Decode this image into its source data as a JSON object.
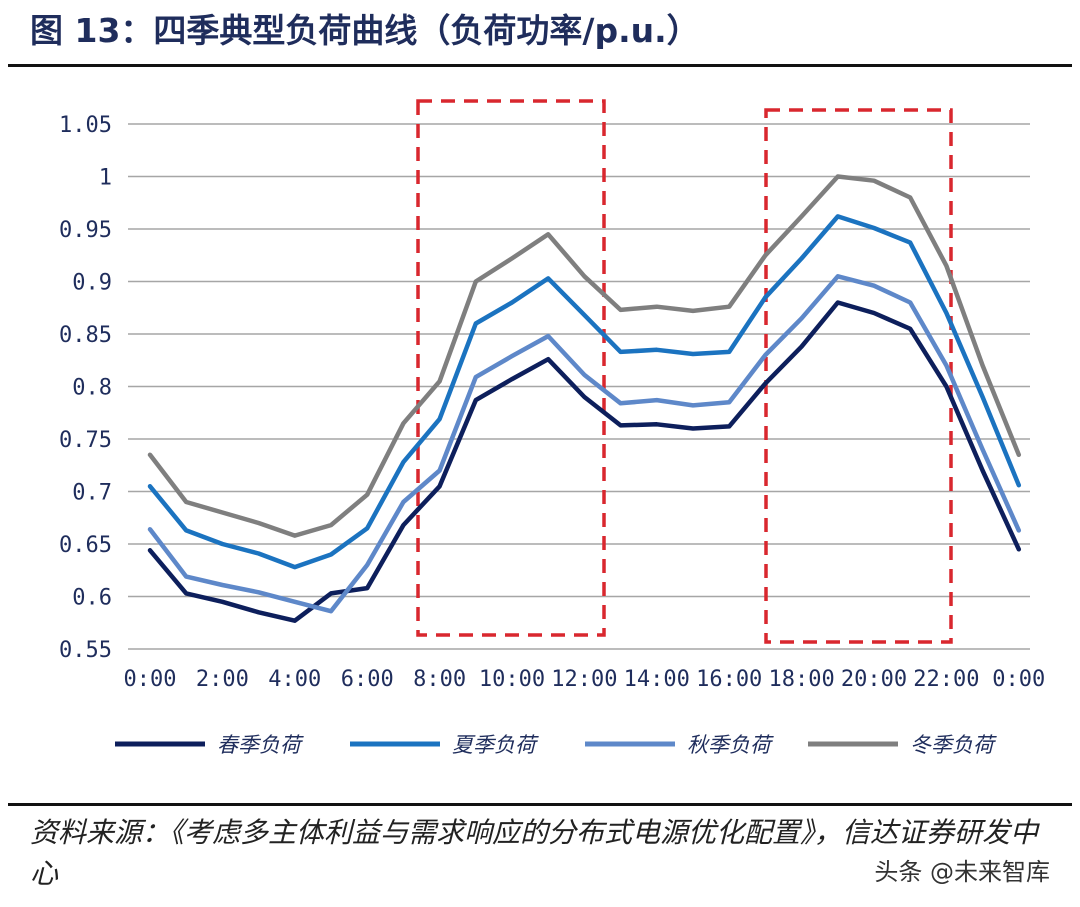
{
  "figure": {
    "title": "图 13：四季典型负荷曲线（负荷功率/p.u.）",
    "source": "资料来源：《考虑多主体利益与需求响应的分布式电源优化配置》，信达证券研发中心",
    "watermark": "头条 @未来智库"
  },
  "chart_data": {
    "type": "line",
    "x": [
      "0:00",
      "1:00",
      "2:00",
      "3:00",
      "4:00",
      "5:00",
      "6:00",
      "7:00",
      "8:00",
      "9:00",
      "10:00",
      "11:00",
      "12:00",
      "13:00",
      "14:00",
      "15:00",
      "16:00",
      "17:00",
      "18:00",
      "19:00",
      "20:00",
      "21:00",
      "22:00",
      "23:00",
      "0:00"
    ],
    "x_tick_labels": [
      "0:00",
      "2:00",
      "4:00",
      "6:00",
      "8:00",
      "10:00",
      "12:00",
      "14:00",
      "16:00",
      "18:00",
      "20:00",
      "22:00",
      "0:00"
    ],
    "ylim": [
      0.55,
      1.05
    ],
    "y_ticks": [
      "0.55",
      "0.6",
      "0.65",
      "0.7",
      "0.75",
      "0.8",
      "0.85",
      "0.9",
      "0.95",
      "1",
      "1.05"
    ],
    "grid": "horizontal",
    "legend_position": "bottom",
    "highlight_ranges": [
      [
        8,
        12
      ],
      [
        18,
        22
      ]
    ],
    "series": [
      {
        "name": "春季负荷",
        "color": "#0d1f5c",
        "values": [
          0.644,
          0.603,
          0.595,
          0.585,
          0.577,
          0.603,
          0.608,
          0.668,
          0.705,
          0.787,
          0.807,
          0.826,
          0.79,
          0.763,
          0.764,
          0.76,
          0.762,
          0.803,
          0.838,
          0.88,
          0.87,
          0.855,
          0.8,
          0.72,
          0.645
        ]
      },
      {
        "name": "夏季负荷",
        "color": "#1b73c0",
        "values": [
          0.705,
          0.663,
          0.65,
          0.641,
          0.628,
          0.64,
          0.665,
          0.728,
          0.769,
          0.86,
          0.88,
          0.903,
          0.868,
          0.833,
          0.835,
          0.831,
          0.833,
          0.885,
          0.922,
          0.962,
          0.951,
          0.937,
          0.87,
          0.79,
          0.706
        ]
      },
      {
        "name": "秋季负荷",
        "color": "#5e88c9",
        "values": [
          0.664,
          0.619,
          0.611,
          0.604,
          0.595,
          0.586,
          0.63,
          0.69,
          0.72,
          0.809,
          0.829,
          0.848,
          0.811,
          0.784,
          0.787,
          0.782,
          0.785,
          0.83,
          0.865,
          0.905,
          0.896,
          0.88,
          0.82,
          0.74,
          0.663
        ]
      },
      {
        "name": "冬季负荷",
        "color": "#7f7f7f",
        "values": [
          0.735,
          0.69,
          0.68,
          0.67,
          0.658,
          0.668,
          0.697,
          0.765,
          0.805,
          0.9,
          0.922,
          0.945,
          0.905,
          0.873,
          0.876,
          0.872,
          0.876,
          0.925,
          0.962,
          1.0,
          0.996,
          0.98,
          0.915,
          0.82,
          0.735
        ]
      }
    ]
  }
}
